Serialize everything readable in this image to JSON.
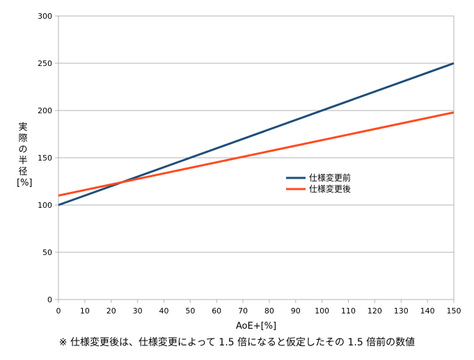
{
  "chart_data": {
    "type": "line",
    "xlabel": "AoE+[%]",
    "ylabel_chars": [
      "実",
      "際",
      "の",
      "半",
      "径"
    ],
    "ylabel_unit": "[%]",
    "xlim": [
      0,
      150
    ],
    "ylim": [
      0,
      300
    ],
    "x_ticks": [
      0,
      10,
      20,
      30,
      40,
      50,
      60,
      70,
      80,
      90,
      100,
      110,
      120,
      130,
      140,
      150
    ],
    "y_ticks": [
      0,
      50,
      100,
      150,
      200,
      250,
      300
    ],
    "grid": "horizontal",
    "legend_position": "right-middle",
    "series": [
      {
        "name": "仕様変更前",
        "color": "#1f4e79",
        "x": [
          0,
          150
        ],
        "y": [
          100,
          250
        ]
      },
      {
        "name": "仕様変更後",
        "color": "#ff4b1f",
        "x": [
          0,
          150
        ],
        "y": [
          110,
          198
        ]
      }
    ]
  },
  "footnote": "※ 仕様変更後は、仕様変更によって 1.5 倍になると仮定したその 1.5 倍前の数値"
}
